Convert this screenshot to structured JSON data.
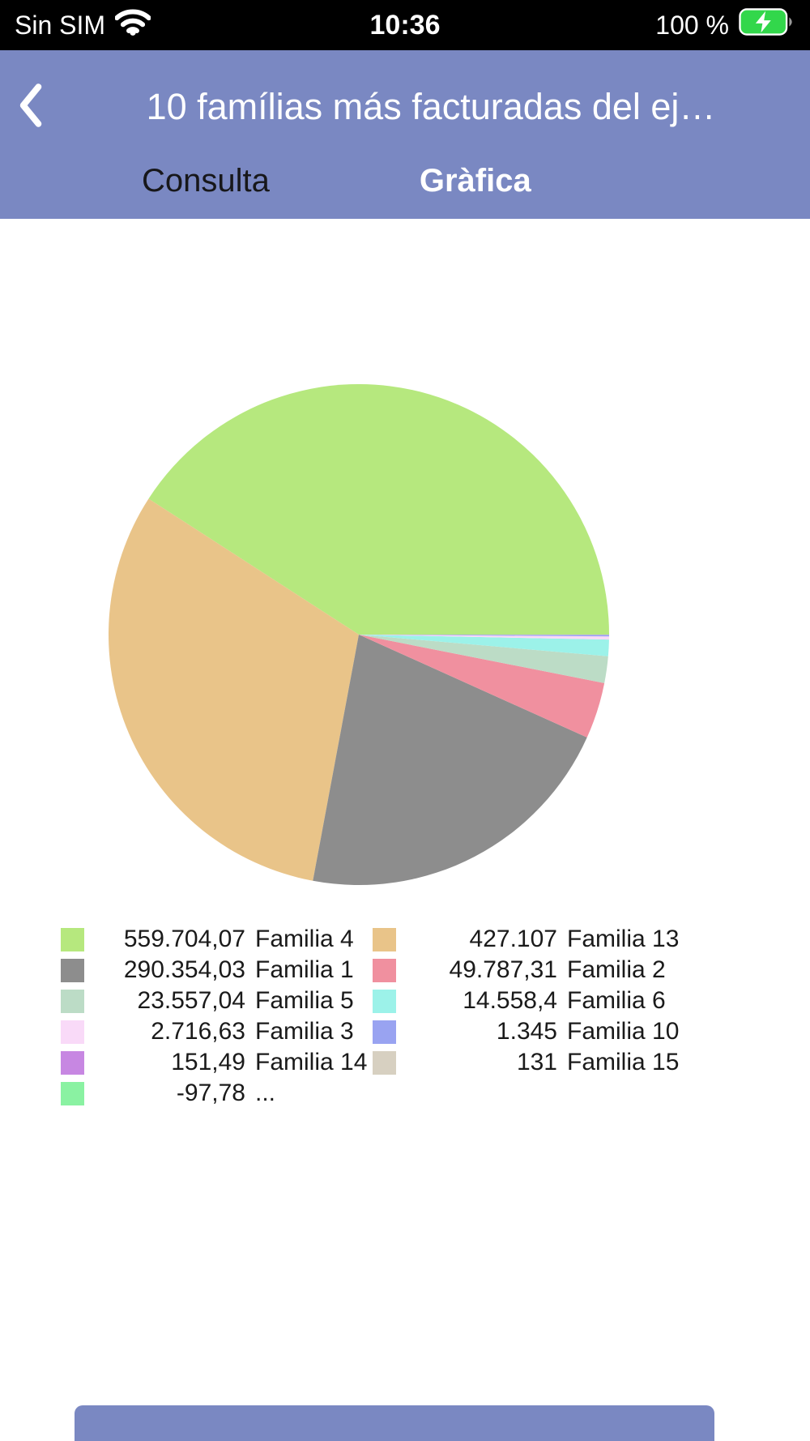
{
  "status_bar": {
    "carrier": "Sin SIM",
    "time": "10:36",
    "battery_percent": "100 %"
  },
  "header": {
    "title": "10 famílias más facturadas del ej…"
  },
  "tabs": [
    {
      "label": "Consulta",
      "active": false
    },
    {
      "label": "Gràfica",
      "active": true
    }
  ],
  "colors": {
    "header_background": "#7a88c2",
    "status_bar_background": "#000000",
    "battery_green": "#32d74b",
    "active_tab_text": "#ffffff",
    "inactive_tab_text": "#17171a"
  },
  "chart_data": {
    "type": "pie",
    "title": "10 famílias más facturadas del ej…",
    "legend_position": "bottom",
    "start_angle_deg": 0,
    "direction": "counterclockwise",
    "slices": [
      {
        "label": "Familia 4",
        "value": 559704.07,
        "display_value": "559.704,07",
        "color": "#b6e87e"
      },
      {
        "label": "Familia 13",
        "value": 427107,
        "display_value": "427.107",
        "color": "#e9c489"
      },
      {
        "label": "Familia 1",
        "value": 290354.03,
        "display_value": "290.354,03",
        "color": "#8d8d8d"
      },
      {
        "label": "Familia 2",
        "value": 49787.31,
        "display_value": "49.787,31",
        "color": "#f0909f"
      },
      {
        "label": "Familia 5",
        "value": 23557.04,
        "display_value": "23.557,04",
        "color": "#bcdcc6"
      },
      {
        "label": "Familia 6",
        "value": 14558.4,
        "display_value": "14.558,4",
        "color": "#9cf2e9"
      },
      {
        "label": "Familia 3",
        "value": 2716.63,
        "display_value": "2.716,63",
        "color": "#f9daf8"
      },
      {
        "label": "Familia 10",
        "value": 1345,
        "display_value": "1.345",
        "color": "#99a3f1"
      },
      {
        "label": "Familia 14",
        "value": 151.49,
        "display_value": "151,49",
        "color": "#c787e2"
      },
      {
        "label": "Familia 15",
        "value": 131,
        "display_value": "131",
        "color": "#d7d0c1"
      },
      {
        "label": "...",
        "value": -97.78,
        "display_value": "-97,78",
        "color": "#8af2a2"
      }
    ]
  },
  "bottom_bar": {
    "visible": true
  }
}
